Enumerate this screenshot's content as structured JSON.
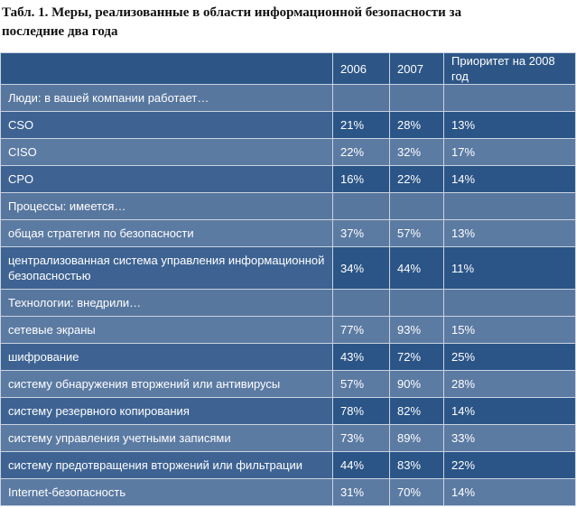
{
  "title": "Табл. 1. Меры, реализованные в области информационной безопасности за последние два года",
  "table": {
    "header": [
      "2006",
      "2007",
      "Приоритет на 2008 год"
    ],
    "sections": [
      {
        "label": "Люди: в вашей компании работает…",
        "rows": [
          {
            "label": "CSO",
            "values": [
              "21%",
              "28%",
              "13%"
            ]
          },
          {
            "label": "CISO",
            "values": [
              "22%",
              "32%",
              "17%"
            ]
          },
          {
            "label": "CPO",
            "values": [
              "16%",
              "22%",
              "14%"
            ]
          }
        ]
      },
      {
        "label": "Процессы: имеется…",
        "rows": [
          {
            "label": "общая стратегия по безопасности",
            "values": [
              "37%",
              "57%",
              "13%"
            ]
          },
          {
            "label": "централизованная система управления информационной безопасностью",
            "values": [
              "34%",
              "44%",
              "11%"
            ]
          }
        ]
      },
      {
        "label": "Технологии: внедрили…",
        "rows": [
          {
            "label": "сетевые экраны",
            "values": [
              "77%",
              "93%",
              "15%"
            ]
          },
          {
            "label": "шифрование",
            "values": [
              "43%",
              "72%",
              "25%"
            ]
          },
          {
            "label": "систему обнаружения вторжений или антивирусы",
            "values": [
              "57%",
              "90%",
              "28%"
            ]
          },
          {
            "label": "систему резервного копирования",
            "values": [
              "78%",
              "82%",
              "14%"
            ]
          },
          {
            "label": "систему управления учетными записями",
            "values": [
              "73%",
              "89%",
              "33%"
            ]
          },
          {
            "label": "систему предотвращения вторжений или фильтрации",
            "values": [
              "44%",
              "83%",
              "22%"
            ]
          },
          {
            "label": "Internet-безопасность",
            "values": [
              "31%",
              "70%",
              "14%"
            ]
          }
        ]
      }
    ]
  }
}
